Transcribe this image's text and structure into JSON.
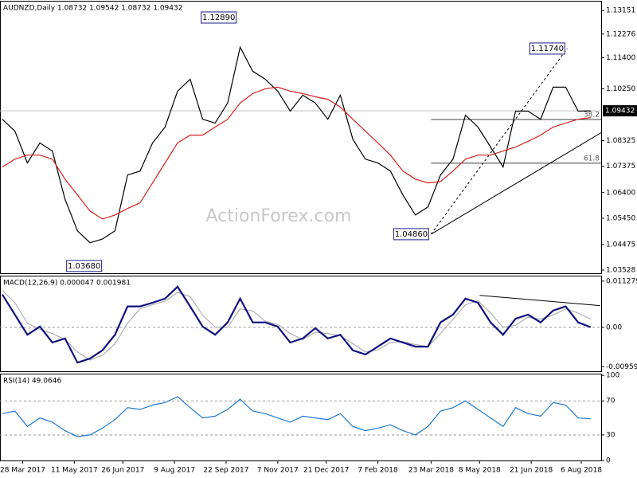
{
  "chart_data": [
    {
      "type": "line",
      "title": "AUDNZD,Daily  1.08732 1.09542 1.08732 1.09432",
      "x": [
        0,
        8,
        16,
        24,
        32,
        40,
        48,
        56,
        64,
        72,
        80,
        88,
        96,
        104,
        112,
        120,
        128,
        136,
        144,
        152,
        160,
        168,
        176,
        184,
        192,
        200,
        208,
        216,
        224,
        232,
        240,
        248,
        256,
        264,
        272,
        280,
        288,
        296,
        304,
        312,
        320,
        328,
        336,
        344,
        352,
        360,
        368,
        376
      ],
      "xlim": [
        -1.5,
        382.7
      ],
      "ylim": [
        1.0341,
        1.1351
      ],
      "yticks": [
        1.13151,
        1.12276,
        {
          "value": 1.114,
          "label": "1.11400"
        },
        {
          "value": 1.1025,
          "label": "1.10250"
        },
        1.08325,
        1.07375,
        {
          "value": 1.064,
          "label": "1.06400"
        },
        {
          "value": 1.0545,
          "label": "1.05450"
        },
        1.04475,
        1.03528
      ],
      "series": [
        {
          "color": "#000000",
          "values": [
            1.0912,
            1.0868,
            1.075,
            1.0824,
            1.0794,
            1.0616,
            1.0498,
            1.0454,
            1.0468,
            1.0498,
            1.0705,
            1.072,
            1.0824,
            1.0883,
            1.1016,
            1.106,
            1.0912,
            1.0898,
            1.0972,
            1.1179,
            1.109,
            1.106,
            1.1016,
            1.0942,
            1.1001,
            1.0972,
            1.0912,
            1.1001,
            1.0838,
            1.0764,
            1.075,
            1.072,
            1.0631,
            1.0557,
            1.0587,
            1.0705,
            1.0764,
            1.0927,
            1.0883,
            1.0809,
            1.0735,
            1.0942,
            1.0942,
            1.0912,
            1.1031,
            1.1031,
            1.0942,
            1.09432
          ]
        },
        {
          "color": "#d42020",
          "values": [
            1.0735,
            1.0764,
            1.0779,
            1.0779,
            1.0764,
            1.069,
            1.0631,
            1.0572,
            1.0542,
            1.0557,
            1.0581,
            1.0602,
            1.0676,
            1.075,
            1.0824,
            1.0853,
            1.0853,
            1.0883,
            1.0912,
            1.0972,
            1.1007,
            1.1025,
            1.1031,
            1.1016,
            1.1007,
            1.0995,
            1.0986,
            1.0957,
            1.0912,
            1.0868,
            1.0824,
            1.0779,
            1.072,
            1.069,
            1.0676,
            1.0681,
            1.072,
            1.0764,
            1.0779,
            1.0779,
            1.0794,
            1.0809,
            1.083,
            1.0853,
            1.0883,
            1.0898,
            1.0912,
            1.0918
          ]
        }
      ],
      "current_price": 1.09432,
      "annotations": [
        {
          "text": "1.12890",
          "x": 151,
          "value": 1.1289
        },
        {
          "text": "1.03680",
          "x": 65,
          "value": 1.0368
        },
        {
          "text": "1.04860",
          "x": 274,
          "value": 1.0486
        },
        {
          "text": "1.11740",
          "x": 361,
          "value": 1.1174
        }
      ],
      "fib_levels": [
        {
          "label": 38.2,
          "value": 1.0911,
          "x": [
            274,
            382.7
          ]
        },
        {
          "label": 61.8,
          "value": 1.0749,
          "x": [
            274,
            382.7
          ]
        }
      ],
      "trendlines": [
        {
          "x": [
            274,
            382.7
          ],
          "values": [
            1.0486,
            1.0862
          ],
          "dash": false
        },
        {
          "x": [
            274,
            361
          ],
          "values": [
            1.0486,
            1.1174
          ],
          "dash": true
        }
      ],
      "watermark": "ActionForex.com"
    },
    {
      "type": "line",
      "title": "MACD(12,26,9) 0.000047 0.001981",
      "x": [
        0,
        8,
        16,
        24,
        32,
        40,
        48,
        56,
        64,
        72,
        80,
        88,
        96,
        104,
        112,
        120,
        128,
        136,
        144,
        152,
        160,
        168,
        176,
        184,
        192,
        200,
        208,
        216,
        224,
        232,
        240,
        248,
        256,
        264,
        272,
        280,
        288,
        296,
        304,
        312,
        320,
        328,
        336,
        344,
        352,
        360,
        368,
        376
      ],
      "xlim": [
        -1.5,
        382.7
      ],
      "ylim": [
        -0.0107,
        0.0126
      ],
      "yticks": [
        0.011279,
        {
          "value": 0,
          "label": "0.00"
        },
        -0.009593
      ],
      "reference_lines": [
        0
      ],
      "series": [
        {
          "color": "#b0b0b0",
          "values": [
            0.009,
            0.006,
            0.001,
            -0.0005,
            -0.0015,
            -0.003,
            -0.006,
            -0.008,
            -0.0068,
            -0.004,
            0.001,
            0.0045,
            0.0055,
            0.0064,
            0.0085,
            0.0075,
            0.003,
            0.0,
            0.0,
            0.0045,
            0.004,
            0.0015,
            0.0007,
            -0.0015,
            -0.003,
            -0.0012,
            -0.0015,
            -0.002,
            -0.004,
            -0.006,
            -0.0055,
            -0.0037,
            -0.0035,
            -0.0042,
            -0.0047,
            -0.0015,
            0.002,
            0.0055,
            0.0065,
            0.0035,
            0.0,
            0.0005,
            0.0025,
            0.002,
            0.003,
            0.0045,
            0.0035,
            0.001981
          ]
        },
        {
          "color": "#101080",
          "values": [
            0.008,
            0.0031,
            -0.0018,
            0.0002,
            -0.0037,
            -0.0027,
            -0.0086,
            -0.0076,
            -0.0056,
            -0.0018,
            0.0051,
            0.0051,
            0.006,
            0.007,
            0.0099,
            0.0051,
            0.0002,
            -0.0018,
            0.0012,
            0.007,
            0.0012,
            0.0012,
            0.0002,
            -0.0037,
            -0.0027,
            -0.0002,
            -0.0027,
            -0.0018,
            -0.0056,
            -0.0066,
            -0.0047,
            -0.0027,
            -0.0037,
            -0.0047,
            -0.0047,
            0.0012,
            0.0031,
            0.007,
            0.006,
            0.0012,
            -0.0018,
            0.0021,
            0.0031,
            0.0012,
            0.0041,
            0.0051,
            0.0012,
            4.7e-05
          ]
        }
      ],
      "trendlines": [
        {
          "x": [
            305,
            382
          ],
          "values": [
            0.0078,
            0.0053
          ],
          "dash": false
        }
      ]
    },
    {
      "type": "line",
      "title": "RSI(14) 49.0646",
      "x": [
        0,
        8,
        16,
        24,
        32,
        40,
        48,
        56,
        64,
        72,
        80,
        88,
        96,
        104,
        112,
        120,
        128,
        136,
        144,
        152,
        160,
        168,
        176,
        184,
        192,
        200,
        208,
        216,
        224,
        232,
        240,
        248,
        256,
        264,
        272,
        280,
        288,
        296,
        304,
        312,
        320,
        328,
        336,
        344,
        352,
        360,
        368,
        376
      ],
      "xlim": [
        -1.5,
        382.7
      ],
      "ylim": [
        0,
        102
      ],
      "yticks": [
        100,
        70,
        30,
        0
      ],
      "reference_lines": [
        70,
        30
      ],
      "series": [
        {
          "color": "#1e78d0",
          "values": [
            55,
            58,
            40,
            50,
            45,
            35,
            28,
            30,
            38,
            48,
            62,
            60,
            65,
            68,
            75,
            62,
            50,
            52,
            60,
            72,
            58,
            55,
            50,
            45,
            52,
            50,
            48,
            55,
            40,
            35,
            38,
            42,
            35,
            30,
            40,
            58,
            62,
            70,
            60,
            50,
            40,
            62,
            55,
            52,
            68,
            65,
            50,
            49.0646
          ]
        }
      ],
      "xticks": [
        {
          "value": 13,
          "label": "28 Mar 2017"
        },
        {
          "value": 46,
          "label": "11 May 2017"
        },
        {
          "value": 77,
          "label": "26 Jun 2017"
        },
        {
          "value": 110,
          "label": "9 Aug 2017"
        },
        {
          "value": 143,
          "label": "22 Sep 2017"
        },
        {
          "value": 176,
          "label": "7 Nov 2017"
        },
        {
          "value": 207,
          "label": "21 Dec 2017"
        },
        {
          "value": 240,
          "label": "7 Feb 2018"
        },
        {
          "value": 274,
          "label": "23 Mar 2018"
        },
        {
          "value": 305,
          "label": "8 May 2018"
        },
        {
          "value": 338,
          "label": "21 Jun 2018"
        },
        {
          "value": 370,
          "label": "6 Aug 2018"
        }
      ]
    }
  ]
}
